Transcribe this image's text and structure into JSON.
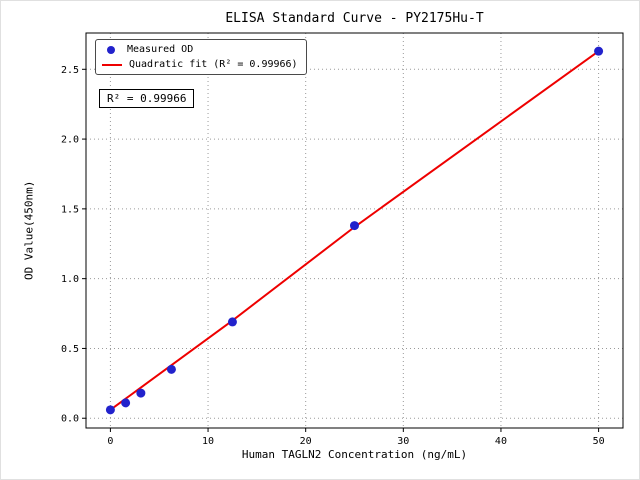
{
  "chart_data": {
    "type": "scatter",
    "title": "ELISA Standard Curve - PY2175Hu-T",
    "xlabel": "Human TAGLN2 Concentration (ng/mL)",
    "ylabel": "OD Value(450nm)",
    "xlim": [
      -2.5,
      52.5
    ],
    "ylim": [
      -0.07,
      2.76
    ],
    "x_ticks": [
      0,
      10,
      20,
      30,
      40,
      50
    ],
    "x_tick_labels": [
      "0",
      "10",
      "20",
      "30",
      "40",
      "50"
    ],
    "y_ticks": [
      0.0,
      0.5,
      1.0,
      1.5,
      2.0,
      2.5
    ],
    "y_tick_labels": [
      "0.0",
      "0.5",
      "1.0",
      "1.5",
      "2.0",
      "2.5"
    ],
    "grid": true,
    "grid_style": "dotted",
    "legend_position": "upper left",
    "series": [
      {
        "name": "Measured OD",
        "type": "scatter",
        "color": "#2222cc",
        "x": [
          0,
          1.56,
          3.12,
          6.25,
          12.5,
          25,
          50
        ],
        "y": [
          0.06,
          0.11,
          0.18,
          0.35,
          0.69,
          1.38,
          2.63
        ]
      },
      {
        "name": "Quadratic fit (R² = 0.99966)",
        "type": "line",
        "color": "#ee0000",
        "x": [
          0,
          1.56,
          3.12,
          6.25,
          12.5,
          25,
          50
        ],
        "y": [
          0.06,
          0.14,
          0.22,
          0.38,
          0.7,
          1.37,
          2.63
        ]
      }
    ],
    "annotation": "R² = 0.99966",
    "r_squared": "0.99966"
  }
}
